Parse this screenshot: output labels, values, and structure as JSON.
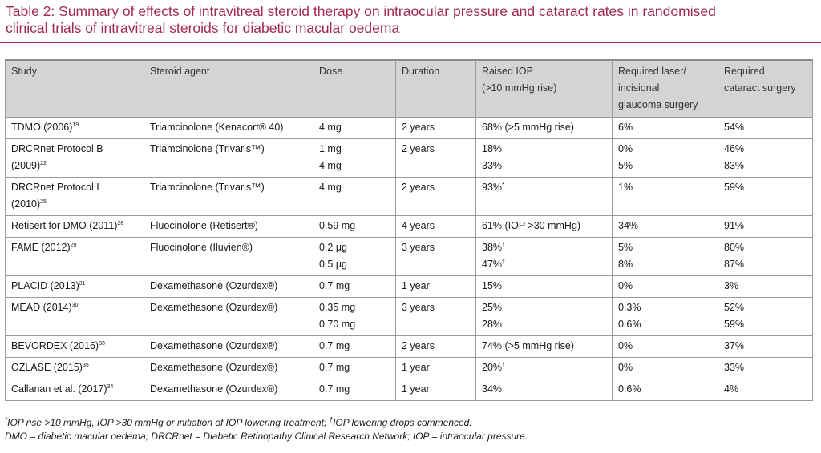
{
  "title": {
    "line1": "Table 2: Summary of effects of intravitreal steroid therapy on intraocular pressure and cataract rates in randomised",
    "line2": "clinical trials of intravitreal steroids for diabetic macular oedema"
  },
  "headers": [
    [
      "Study"
    ],
    [
      "Steroid agent"
    ],
    [
      "Dose"
    ],
    [
      "Duration"
    ],
    [
      "Raised IOP",
      "(>10 mmHg rise)"
    ],
    [
      "Required laser/",
      "incisional",
      "glaucoma surgery"
    ],
    [
      "Required",
      "cataract surgery"
    ]
  ],
  "rows": [
    {
      "study": [
        {
          "t": "TDMO (2006)",
          "sup": "19"
        }
      ],
      "agent": "Triamcinolone (Kenacort® 40)",
      "dose": [
        "4 mg"
      ],
      "duration": "2 years",
      "iop": [
        {
          "t": "68% (>5 mmHg rise)",
          "sup": ""
        }
      ],
      "laser": [
        "6%"
      ],
      "cataract": [
        "54%"
      ]
    },
    {
      "study": [
        {
          "t": "DRCRnet Protocol B",
          "sup": ""
        },
        {
          "t": "(2009)",
          "sup": "22"
        }
      ],
      "agent": "Triamcinolone (Trivaris™)",
      "dose": [
        "1 mg",
        "4 mg"
      ],
      "duration": "2 years",
      "iop": [
        {
          "t": "18%",
          "sup": ""
        },
        {
          "t": "33%",
          "sup": ""
        }
      ],
      "laser": [
        "0%",
        "5%"
      ],
      "cataract": [
        "46%",
        "83%"
      ]
    },
    {
      "study": [
        {
          "t": "DRCRnet Protocol I",
          "sup": ""
        },
        {
          "t": "(2010)",
          "sup": "25"
        }
      ],
      "agent": "Triamcinolone (Trivaris™)",
      "dose": [
        "4 mg"
      ],
      "duration": "2 years",
      "iop": [
        {
          "t": "93%",
          "sup": "*"
        }
      ],
      "laser": [
        "1%"
      ],
      "cataract": [
        "59%"
      ]
    },
    {
      "study": [
        {
          "t": "Retisert for DMO (2011)",
          "sup": "28"
        }
      ],
      "agent": "Fluocinolone (Retisert®)",
      "dose": [
        "0.59 mg"
      ],
      "duration": "4 years",
      "iop": [
        {
          "t": "61% (IOP >30 mmHg)",
          "sup": ""
        }
      ],
      "laser": [
        "34%"
      ],
      "cataract": [
        "91%"
      ]
    },
    {
      "study": [
        {
          "t": "FAME (2012)",
          "sup": "29"
        }
      ],
      "agent": "Fluocinolone (Iluvien®)",
      "dose": [
        "0.2 μg",
        "0.5 μg"
      ],
      "duration": "3 years",
      "iop": [
        {
          "t": "38%",
          "sup": "†"
        },
        {
          "t": "47%",
          "sup": "†"
        }
      ],
      "laser": [
        "5%",
        "8%"
      ],
      "cataract": [
        "80%",
        "87%"
      ]
    },
    {
      "study": [
        {
          "t": "PLACID (2013)",
          "sup": "31"
        }
      ],
      "agent": "Dexamethasone (Ozurdex®)",
      "dose": [
        "0.7 mg"
      ],
      "duration": "1 year",
      "iop": [
        {
          "t": "15%",
          "sup": ""
        }
      ],
      "laser": [
        "0%"
      ],
      "cataract": [
        "3%"
      ]
    },
    {
      "study": [
        {
          "t": "MEAD (2014)",
          "sup": "30"
        }
      ],
      "agent": "Dexamethasone (Ozurdex®)",
      "dose": [
        "0.35 mg",
        "0.70 mg"
      ],
      "duration": "3 years",
      "iop": [
        {
          "t": "25%",
          "sup": ""
        },
        {
          "t": "28%",
          "sup": ""
        }
      ],
      "laser": [
        "0.3%",
        "0.6%"
      ],
      "cataract": [
        "52%",
        "59%"
      ]
    },
    {
      "study": [
        {
          "t": "BEVORDEX (2016)",
          "sup": "33"
        }
      ],
      "agent": "Dexamethasone (Ozurdex®)",
      "dose": [
        "0.7 mg"
      ],
      "duration": "2 years",
      "iop": [
        {
          "t": "74% (>5 mmHg rise)",
          "sup": ""
        }
      ],
      "laser": [
        "0%"
      ],
      "cataract": [
        "37%"
      ]
    },
    {
      "study": [
        {
          "t": "OZLASE (2015)",
          "sup": "35"
        }
      ],
      "agent": "Dexamethasone (Ozurdex®)",
      "dose": [
        "0.7 mg"
      ],
      "duration": "1 year",
      "iop": [
        {
          "t": "20%",
          "sup": "†"
        }
      ],
      "laser": [
        "0%"
      ],
      "cataract": [
        "33%"
      ]
    },
    {
      "study": [
        {
          "t": "Callanan et al. (2017)",
          "sup": "34"
        }
      ],
      "agent": "Dexamethasone (Ozurdex®)",
      "dose": [
        "0.7 mg"
      ],
      "duration": "1 year",
      "iop": [
        {
          "t": "34%",
          "sup": ""
        }
      ],
      "laser": [
        "0.6%"
      ],
      "cataract": [
        "4%"
      ]
    }
  ],
  "footnotes": {
    "line1_sup1": "*",
    "line1_a": "IOP rise >10 mmHg, IOP >30 mmHg or initiation of IOP lowering treatment; ",
    "line1_sup2": "†",
    "line1_b": "IOP lowering drops commenced.",
    "line2": "DMO = diabetic macular oedema; DRCRnet = Diabetic Retinopathy Clinical Research Network; IOP = intraocular pressure."
  }
}
